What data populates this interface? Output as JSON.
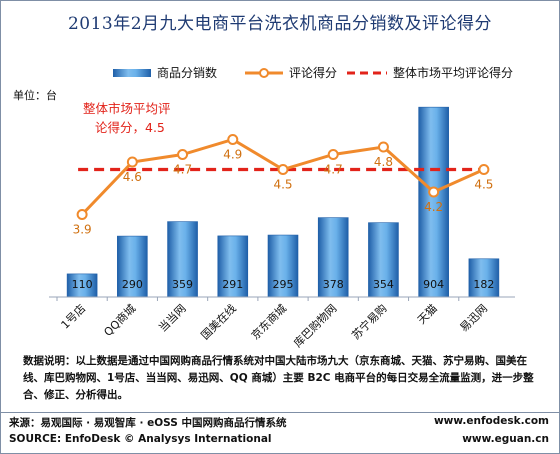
{
  "chart_data": {
    "type": "bar",
    "title": "2013年2月九大电商平台洗衣机商品分销数及评论得分",
    "ylabel": "单位：台",
    "categories": [
      "1号店",
      "QQ商城",
      "当当网",
      "国美在线",
      "京东商城",
      "库巴购物网",
      "苏宁易购",
      "天猫",
      "易迅网"
    ],
    "series": [
      {
        "name": "商品分销数",
        "type": "bar",
        "values": [
          110,
          290,
          359,
          291,
          295,
          378,
          354,
          904,
          182
        ]
      },
      {
        "name": "评论得分",
        "type": "line",
        "values": [
          3.9,
          4.6,
          4.7,
          4.9,
          4.5,
          4.7,
          4.8,
          4.2,
          4.5
        ]
      },
      {
        "name": "整体市场平均评论得分",
        "type": "line-dashed",
        "value": 4.5
      }
    ],
    "bar_ylim": [
      0,
      1000
    ],
    "score_ylim": [
      2.8,
      5.6
    ],
    "annotation": {
      "line1": "整体市场平均评",
      "line2": "论得分，4.5"
    },
    "legend_position": "top",
    "grid": false
  },
  "colors": {
    "bar": "#2d7fcf",
    "bar_light": "#8fc6f1",
    "line": "#f08a2c",
    "avg": "#e2231a",
    "label_blue": "#1a1a1a",
    "label_orange": "#d07010"
  },
  "notes": "数据说明：以上数据是通过中国网购商品行情系统对中国大陆市场九大（京东商城、天猫、苏宁易购、国美在线、库巴购物网、1号店、当当网、易迅网、QQ 商城）主要 B2C 电商平台的每日交易全流量监测，进一步整合、修正、分析得出。",
  "source": {
    "cn": "来源：易观国际 · 易观智库 · eOSS 中国网购商品行情系统",
    "en": "SOURCE: EnfoDesk © Analysys International",
    "url1": "www.enfodesk.com",
    "url2": "www.eguan.cn"
  }
}
